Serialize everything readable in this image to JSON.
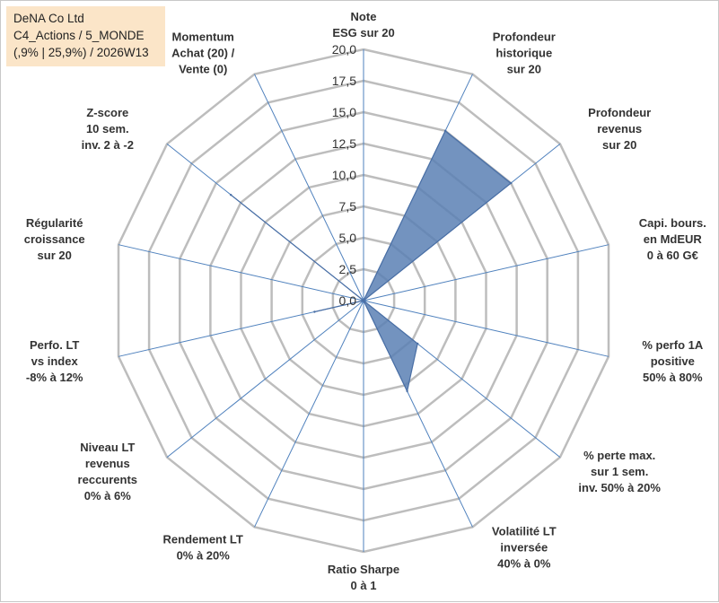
{
  "title": {
    "line1": "DeNA Co Ltd",
    "line2": "C4_Actions / 5_MONDE",
    "line3": "(,9% | 25,9%) / 2026W13"
  },
  "colors": {
    "fill": "#5b80b4",
    "stroke": "#4a6fa5",
    "grid": "#bdbdbd",
    "spoke": "#4f81bd",
    "title_bg": "#fbe5c8"
  },
  "chart_data": {
    "type": "radar",
    "rmin": 0,
    "rmax": 20,
    "step": 2.5,
    "tick_labels": [
      "0,0",
      "2,5",
      "5,0",
      "7,5",
      "10,0",
      "12,5",
      "15,0",
      "17,5",
      "20,0"
    ],
    "axes": [
      [
        "Note",
        "ESG sur 20"
      ],
      [
        "Profondeur",
        "historique",
        "sur 20"
      ],
      [
        "Profondeur",
        "revenus",
        "sur 20"
      ],
      [
        "Capi. bours.",
        "en MdEUR",
        "0 à 60 G€"
      ],
      [
        "% perfo 1A",
        "positive",
        "50% à 80%"
      ],
      [
        "% perte max.",
        "sur 1 sem.",
        "inv. 50% à 20%"
      ],
      [
        "Volatilité LT",
        "inversée",
        "40% à 0%"
      ],
      [
        "Ratio Sharpe",
        "0 à 1"
      ],
      [
        "Rendement LT",
        "0% à 20%"
      ],
      [
        "Niveau LT",
        "revenus",
        "reccurents",
        "0% à 6%"
      ],
      [
        "Perfo. LT",
        "vs index",
        "-8% à 12%"
      ],
      [
        "Régularité",
        "croissance",
        "sur 20"
      ],
      [
        "Z-score",
        "10 sem.",
        "inv. 2 à -2"
      ],
      [
        "Momentum",
        "Achat (20) /",
        "Vente (0)"
      ]
    ],
    "series": [
      {
        "values": [
          0,
          15,
          15,
          0,
          0,
          5.5,
          8,
          0,
          0,
          0,
          4,
          0,
          13.5,
          0
        ]
      }
    ]
  }
}
